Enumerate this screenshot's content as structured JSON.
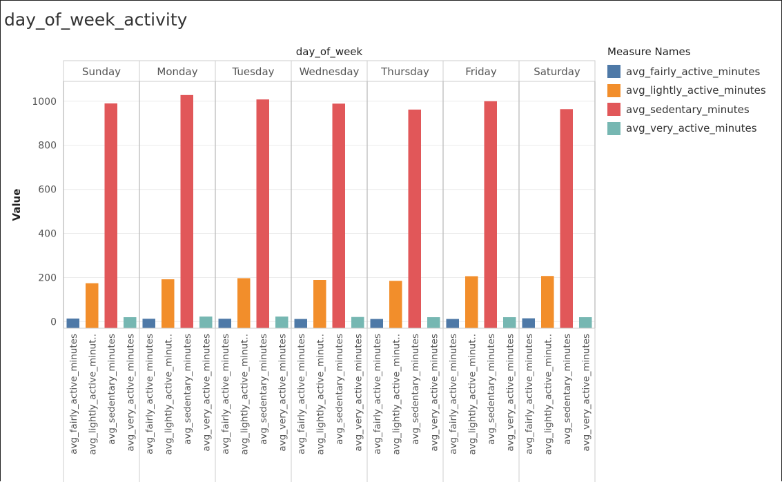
{
  "title": "day_of_week_activity",
  "colors": {
    "avg_fairly_active_minutes": "#4e79a7",
    "avg_lightly_active_minutes": "#f28e2b",
    "avg_sedentary_minutes": "#e15759",
    "avg_very_active_minutes": "#76b7b2"
  },
  "legend": {
    "title": "Measure Names",
    "items": [
      {
        "label": "avg_fairly_active_minutes",
        "color": "#4e79a7"
      },
      {
        "label": "avg_lightly_active_minutes",
        "color": "#f28e2b"
      },
      {
        "label": "avg_sedentary_minutes",
        "color": "#e15759"
      },
      {
        "label": "avg_very_active_minutes",
        "color": "#76b7b2"
      }
    ]
  },
  "chart_data": {
    "type": "bar",
    "column_header": "day_of_week",
    "xlabel": "",
    "ylabel": "Value",
    "ylim": [
      -30,
      1090
    ],
    "yticks": [
      0,
      200,
      400,
      600,
      800,
      1000
    ],
    "grid": true,
    "legend_placement": "right",
    "panels": [
      "Sunday",
      "Monday",
      "Tuesday",
      "Wednesday",
      "Thursday",
      "Friday",
      "Saturday"
    ],
    "bar_tick_labels": [
      "avg_fairly_active_minutes",
      "avg_lightly_active_minut..",
      "avg_sedentary_minutes",
      "avg_very_active_minutes"
    ],
    "series": [
      {
        "name": "avg_fairly_active_minutes",
        "values": [
          14,
          13,
          13,
          12,
          12,
          12,
          15
        ]
      },
      {
        "name": "avg_lightly_active_minutes",
        "values": [
          174,
          192,
          197,
          189,
          185,
          206,
          207
        ]
      },
      {
        "name": "avg_sedentary_minutes",
        "values": [
          990,
          1028,
          1008,
          989,
          962,
          1000,
          964
        ]
      },
      {
        "name": "avg_very_active_minutes",
        "values": [
          20,
          23,
          23,
          21,
          20,
          20,
          20
        ]
      }
    ]
  }
}
